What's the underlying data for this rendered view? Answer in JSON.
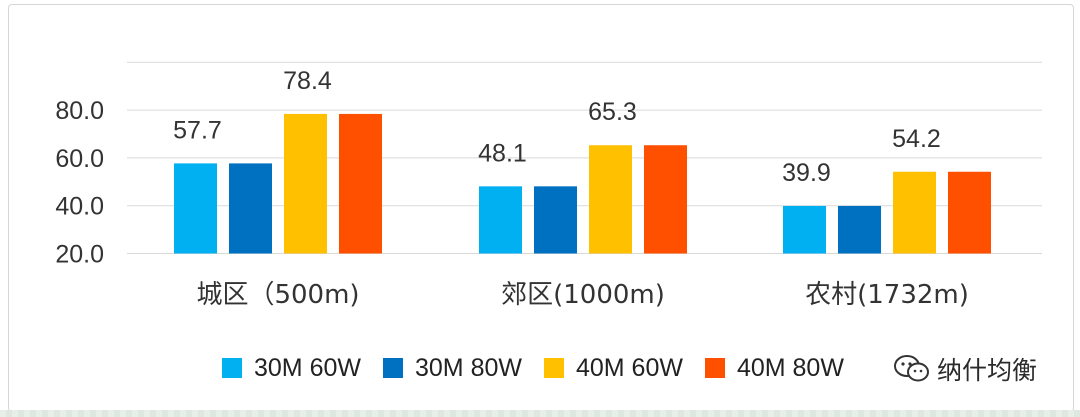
{
  "chart_data": {
    "type": "bar",
    "title": "",
    "xlabel": "",
    "ylabel": "",
    "ylim": [
      20,
      100
    ],
    "yticks": [
      20.0,
      40.0,
      60.0,
      80.0
    ],
    "ytick_labels": [
      "20.0",
      "40.0",
      "60.0",
      "80.0"
    ],
    "grid": true,
    "categories": [
      "城区（500m)",
      "郊区(1000m)",
      "农村(1732m)"
    ],
    "series": [
      {
        "name": "30M 60W",
        "color": "#00b0f0",
        "values": [
          57.7,
          48.1,
          39.9
        ]
      },
      {
        "name": "30M 80W",
        "color": "#0070c0",
        "values": [
          57.7,
          48.1,
          39.9
        ]
      },
      {
        "name": "40M 60W",
        "color": "#ffc000",
        "values": [
          78.4,
          65.3,
          54.2
        ]
      },
      {
        "name": "40M 80W",
        "color": "#ff5000",
        "values": [
          78.4,
          65.3,
          54.2
        ]
      }
    ],
    "data_labels": [
      {
        "text": "57.7",
        "category": 0,
        "series": 0
      },
      {
        "text": "78.4",
        "category": 0,
        "series": 2
      },
      {
        "text": "48.1",
        "category": 1,
        "series": 0
      },
      {
        "text": "65.3",
        "category": 1,
        "series": 2
      },
      {
        "text": "39.9",
        "category": 2,
        "series": 0
      },
      {
        "text": "54.2",
        "category": 2,
        "series": 2
      }
    ],
    "legend_position": "bottom"
  },
  "watermark": {
    "text": "纳什均衡",
    "icon": "wechat-icon"
  }
}
